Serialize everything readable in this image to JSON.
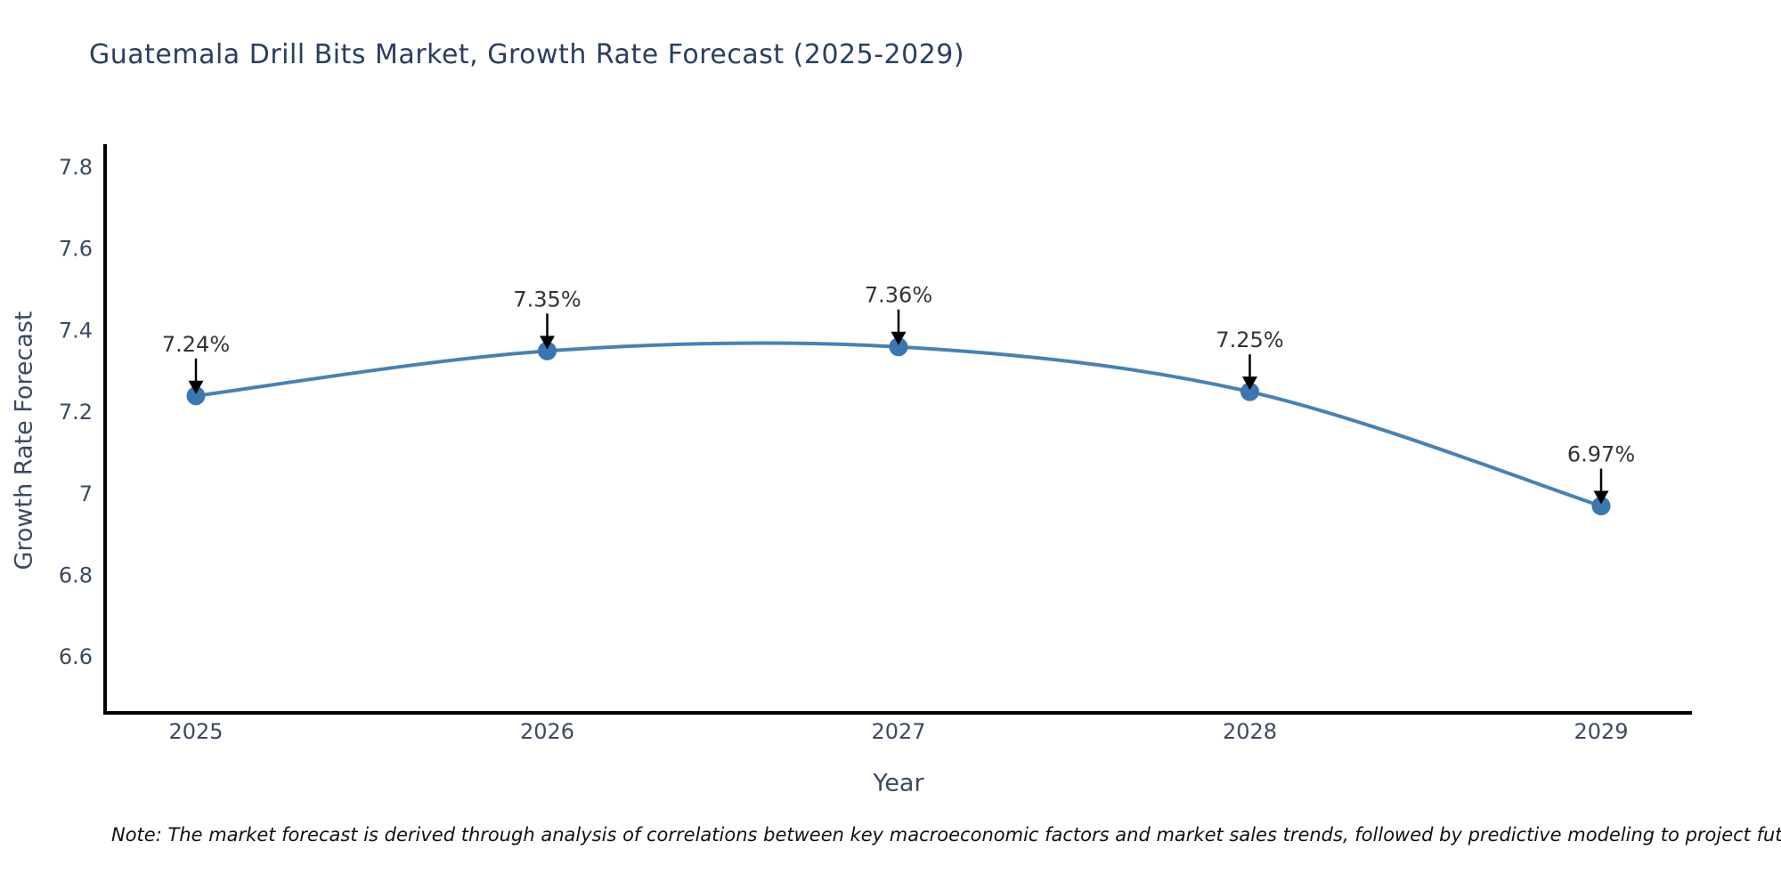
{
  "chart_data": {
    "type": "line",
    "title": "Guatemala Drill Bits Market, Growth Rate Forecast (2025-2029)",
    "xlabel": "Year",
    "ylabel": "Growth Rate Forecast",
    "x": [
      2025,
      2026,
      2027,
      2028,
      2029
    ],
    "xtick_labels": [
      "2025",
      "2026",
      "2027",
      "2028",
      "2029"
    ],
    "series": [
      {
        "name": "Growth Rate Forecast",
        "values": [
          7.24,
          7.35,
          7.36,
          7.25,
          6.97
        ],
        "point_labels": [
          "7.24%",
          "7.35%",
          "7.36%",
          "7.25%",
          "6.97%"
        ]
      }
    ],
    "yticks": [
      6.6,
      6.8,
      7.0,
      7.2,
      7.4,
      7.6,
      7.8
    ],
    "ytick_labels": [
      "6.6",
      "6.8",
      "7",
      "7.2",
      "7.4",
      "7.6",
      "7.8"
    ],
    "ylim": [
      6.46,
      7.86
    ],
    "xlim_years": [
      2024.74,
      2029.26
    ],
    "line_shape": "spline",
    "grid": false,
    "legend": "none",
    "colors": {
      "line": "#4682b4",
      "marker": "#3a76af",
      "axis": "#000000",
      "arrow": "#000000",
      "title_text": "#2a3f5f",
      "axis_label_text": "#3c4a60",
      "tick_text": "#3c4a60",
      "annotation_text": "#333333",
      "note_text": "#111111",
      "background": "#ffffff"
    },
    "note": "Note: The market forecast is derived through analysis of correlations between key macroeconomic factors and market sales trends, followed by predictive modeling to project future sales"
  }
}
